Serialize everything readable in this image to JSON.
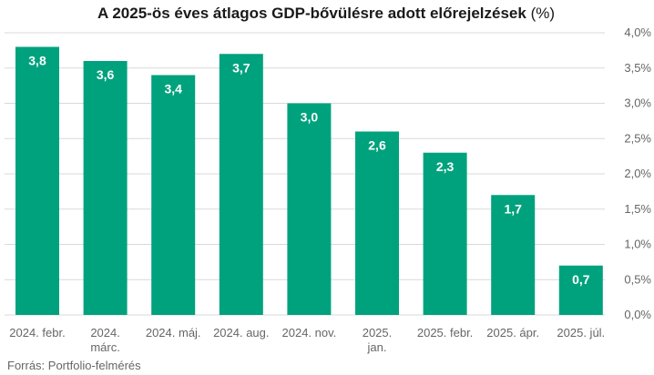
{
  "chart_data": {
    "type": "bar",
    "title": "A 2025-ös éves átlagos GDP-bővülésre adott előrejelzések",
    "title_unit": "(%)",
    "categories": [
      [
        "2024. febr."
      ],
      [
        "2024.",
        "márc."
      ],
      [
        "2024. máj."
      ],
      [
        "2024. aug."
      ],
      [
        "2024. nov."
      ],
      [
        "2025.",
        "jan."
      ],
      [
        "2025. febr."
      ],
      [
        "2025. ápr."
      ],
      [
        "2025. júl."
      ]
    ],
    "values": [
      3.8,
      3.6,
      3.4,
      3.7,
      3.0,
      2.6,
      2.3,
      1.7,
      0.7
    ],
    "data_labels": [
      "3,8",
      "3,6",
      "3,4",
      "3,7",
      "3,0",
      "2,6",
      "2,3",
      "1,7",
      "0,7"
    ],
    "ylim": [
      0,
      4
    ],
    "yticks": [
      0,
      0.5,
      1,
      1.5,
      2,
      2.5,
      3,
      3.5,
      4
    ],
    "ytick_labels": [
      "0,0%",
      "0,5%",
      "1,0%",
      "1,5%",
      "2,0%",
      "2,5%",
      "3,0%",
      "3,5%",
      "4,0%"
    ],
    "y_axis_position": "right",
    "grid": true,
    "bar_color": "#00a27d",
    "source": "Forrás: Portfolio-felmérés"
  }
}
